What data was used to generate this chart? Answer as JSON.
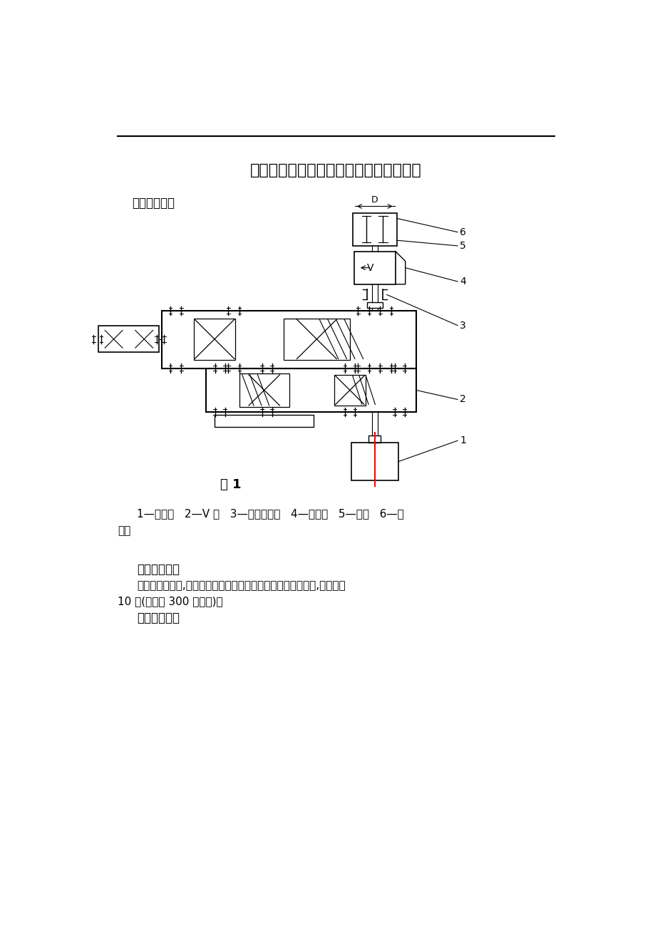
{
  "bg_color": "#ffffff",
  "line_color": "#000000",
  "red_color": "#ff0000",
  "title": "四、减速器结构设计及传动尺寸设计计算",
  "section1": "一、运动简图",
  "fig_label": "图 1",
  "caption_line1": "1—电动机   2—V 带   3—齿轮减速器   4—联轴器   5—滚筒   6—输",
  "caption_line2": "送带",
  "section2_title": "二、工作条件",
  "section2_body": "该装置单向传送,载荷稍有波动，多灰尘，小批量，两班制工作,使用期限",
  "section2_body2": "10 年(每年按 300 天计算)。",
  "section3_title": "三、原始数据"
}
